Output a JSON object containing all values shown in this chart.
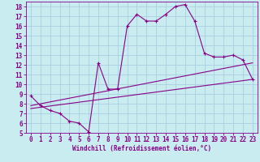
{
  "bg_color": "#c8ecf0",
  "line_color": "#880088",
  "grid_color": "#aacfe0",
  "x_main": [
    0,
    1,
    2,
    3,
    4,
    5,
    6,
    7,
    8,
    9,
    10,
    11,
    12,
    13,
    14,
    15,
    16,
    17,
    18,
    19,
    20,
    21,
    22,
    23
  ],
  "y_main": [
    8.8,
    7.8,
    7.3,
    7.0,
    6.2,
    6.0,
    5.1,
    12.2,
    9.5,
    9.5,
    16.0,
    17.2,
    16.5,
    16.5,
    17.2,
    18.0,
    18.2,
    16.5,
    13.2,
    12.8,
    12.8,
    13.0,
    12.5,
    10.5
  ],
  "x_reg1_start": 0,
  "y_reg1_start": 7.8,
  "x_reg1_end": 23,
  "y_reg1_end": 12.2,
  "x_reg2_start": 0,
  "y_reg2_start": 7.5,
  "x_reg2_end": 23,
  "y_reg2_end": 10.5,
  "xlim": [
    -0.5,
    23.5
  ],
  "ylim": [
    5,
    18.5
  ],
  "xticks": [
    0,
    1,
    2,
    3,
    4,
    5,
    6,
    7,
    8,
    9,
    10,
    11,
    12,
    13,
    14,
    15,
    16,
    17,
    18,
    19,
    20,
    21,
    22,
    23
  ],
  "yticks": [
    5,
    6,
    7,
    8,
    9,
    10,
    11,
    12,
    13,
    14,
    15,
    16,
    17,
    18
  ],
  "xlabel": "Windchill (Refroidissement éolien,°C)",
  "tick_fontsize": 5.5,
  "xlabel_fontsize": 5.5,
  "figwidth": 3.2,
  "figheight": 2.0,
  "dpi": 100
}
